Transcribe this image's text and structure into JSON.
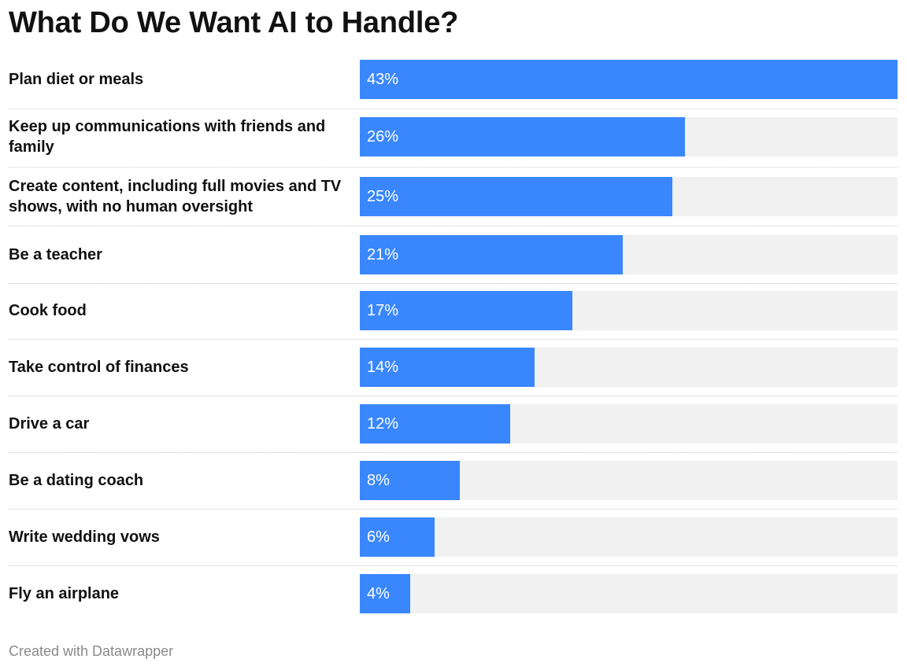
{
  "chart_data": {
    "type": "bar",
    "orientation": "horizontal",
    "title": "What Do We Want AI to Handle?",
    "categories": [
      "Plan diet or meals",
      "Keep up communications with friends and family",
      "Create content, including full movies and TV shows, with no human oversight",
      "Be a teacher",
      "Cook food",
      "Take control of finances",
      "Drive a car",
      "Be a dating coach",
      "Write wedding vows",
      "Fly an airplane"
    ],
    "values": [
      43,
      26,
      25,
      21,
      17,
      14,
      12,
      8,
      6,
      4
    ],
    "value_labels": [
      "43%",
      "26%",
      "25%",
      "21%",
      "17%",
      "14%",
      "12%",
      "8%",
      "6%",
      "4%"
    ],
    "xlim": [
      0,
      43
    ],
    "unit": "%",
    "colors": {
      "bar": "#3a87fd",
      "track": "#f1f1f1"
    }
  },
  "footer": {
    "credit": "Created with Datawrapper"
  }
}
